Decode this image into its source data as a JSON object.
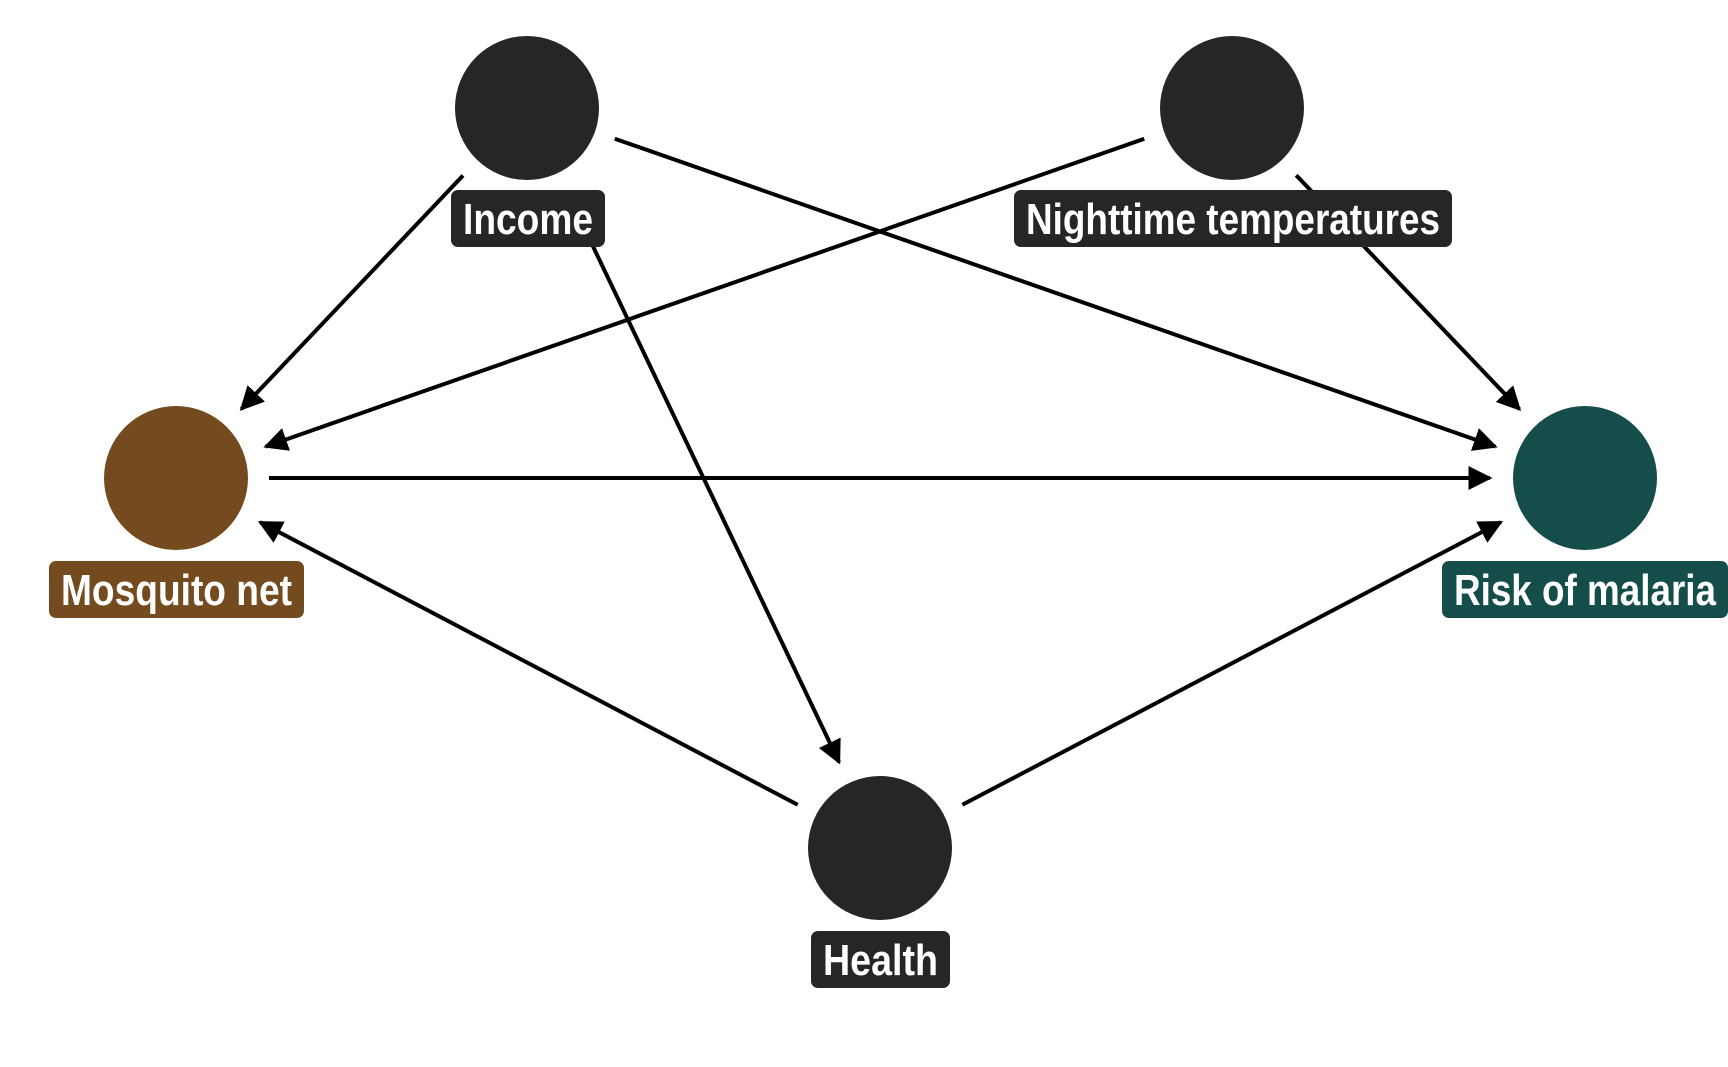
{
  "diagram": {
    "nodes": [
      {
        "id": "income",
        "label": "Income",
        "color": "#262626"
      },
      {
        "id": "nighttime",
        "label": "Nighttime temperatures",
        "color": "#262626"
      },
      {
        "id": "net",
        "label": "Mosquito net",
        "color": "#744b1f"
      },
      {
        "id": "malaria",
        "label": "Risk of malaria",
        "color": "#154d4b"
      },
      {
        "id": "health",
        "label": "Health",
        "color": "#262626"
      }
    ],
    "edges": [
      {
        "from": "income",
        "to": "net"
      },
      {
        "from": "income",
        "to": "malaria"
      },
      {
        "from": "income",
        "to": "health"
      },
      {
        "from": "nighttime",
        "to": "net"
      },
      {
        "from": "nighttime",
        "to": "malaria"
      },
      {
        "from": "net",
        "to": "malaria"
      },
      {
        "from": "health",
        "to": "net"
      },
      {
        "from": "health",
        "to": "malaria"
      }
    ],
    "edge_color": "#000000",
    "label_text_color": "#ffffff"
  }
}
